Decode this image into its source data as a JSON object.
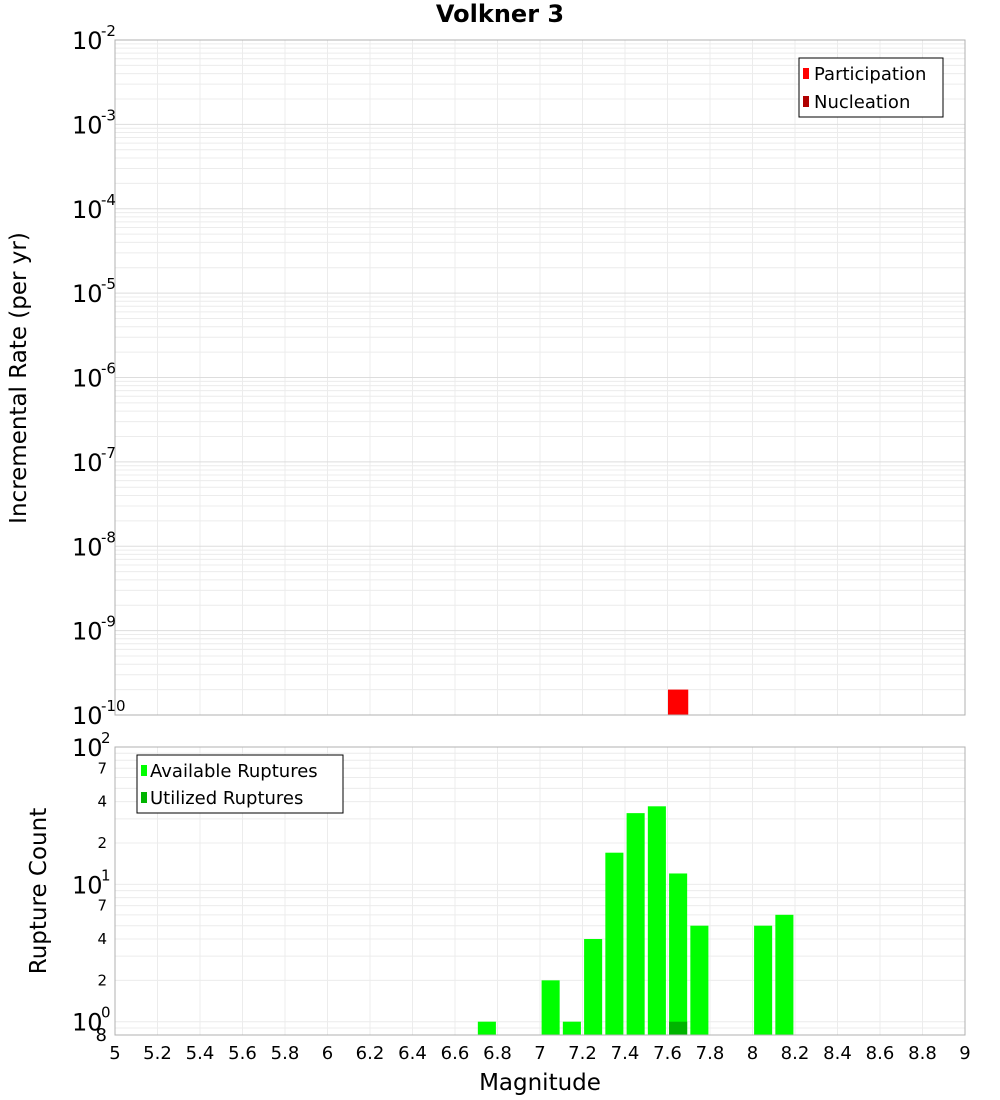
{
  "chart_data": [
    {
      "type": "bar",
      "title": "Volkner 3",
      "ylabel": "Incremental Rate (per yr)",
      "xlim": [
        5,
        9
      ],
      "ylim": [
        1e-10,
        0.01
      ],
      "yscale": "log",
      "grid": true,
      "legend_position": "top-right",
      "bar_width": 0.1,
      "y_ticks": [
        {
          "base": "10",
          "exp": "-2"
        },
        {
          "base": "10",
          "exp": "-3"
        },
        {
          "base": "10",
          "exp": "-4"
        },
        {
          "base": "10",
          "exp": "-5"
        },
        {
          "base": "10",
          "exp": "-6"
        },
        {
          "base": "10",
          "exp": "-7"
        },
        {
          "base": "10",
          "exp": "-8"
        },
        {
          "base": "10",
          "exp": "-9"
        },
        {
          "base": "10",
          "exp": "-10"
        }
      ],
      "series": [
        {
          "name": "Participation",
          "color": "#ff0000",
          "x": [
            7.65
          ],
          "values": [
            2e-10
          ]
        },
        {
          "name": "Nucleation",
          "color": "#b00000",
          "x": [],
          "values": []
        }
      ]
    },
    {
      "type": "bar",
      "xlabel": "Magnitude",
      "ylabel": "Rupture Count",
      "xlim": [
        5,
        9
      ],
      "ylim": [
        0.8,
        100
      ],
      "yscale": "log",
      "grid": true,
      "legend_position": "top-left",
      "bar_width": 0.085,
      "x_ticks": [
        "5",
        "5.2",
        "5.4",
        "5.6",
        "5.8",
        "6",
        "6.2",
        "6.4",
        "6.6",
        "6.8",
        "7",
        "7.2",
        "7.4",
        "7.6",
        "7.8",
        "8",
        "8.2",
        "8.4",
        "8.6",
        "8.8",
        "9"
      ],
      "y_major_ticks": [
        {
          "base": "10",
          "exp": "2",
          "value": 100
        },
        {
          "base": "10",
          "exp": "1",
          "value": 10
        },
        {
          "base": "10",
          "exp": "0",
          "value": 1
        }
      ],
      "y_minor_ticks": [
        {
          "label": "7",
          "value": 70
        },
        {
          "label": "4",
          "value": 40
        },
        {
          "label": "2",
          "value": 20
        },
        {
          "label": "7",
          "value": 7
        },
        {
          "label": "4",
          "value": 4
        },
        {
          "label": "2",
          "value": 2
        },
        {
          "label": "8",
          "value": 0.8
        }
      ],
      "series": [
        {
          "name": "Available Ruptures",
          "color": "#00ff00",
          "x": [
            6.75,
            7.05,
            7.15,
            7.25,
            7.35,
            7.45,
            7.55,
            7.65,
            7.75,
            8.05,
            8.15
          ],
          "values": [
            1,
            2,
            1,
            4,
            17,
            33,
            37,
            12,
            5,
            5,
            6
          ]
        },
        {
          "name": "Utilized Ruptures",
          "color": "#00b400",
          "x": [
            7.65
          ],
          "values": [
            1
          ]
        }
      ]
    }
  ]
}
